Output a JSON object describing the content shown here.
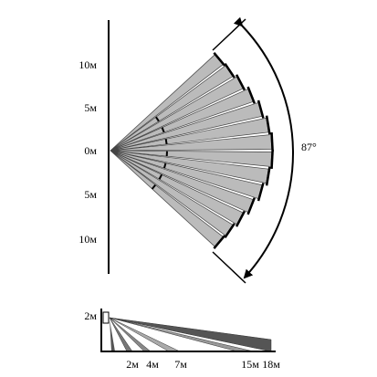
{
  "top_view": {
    "distance_labels": [
      "10м",
      "5м",
      "0м",
      "5м",
      "10м"
    ],
    "angle_label": "87°"
  },
  "side_view": {
    "height_label": "2м",
    "distance_labels": [
      "2м",
      "4м",
      "7м",
      "15м",
      "18м"
    ]
  }
}
